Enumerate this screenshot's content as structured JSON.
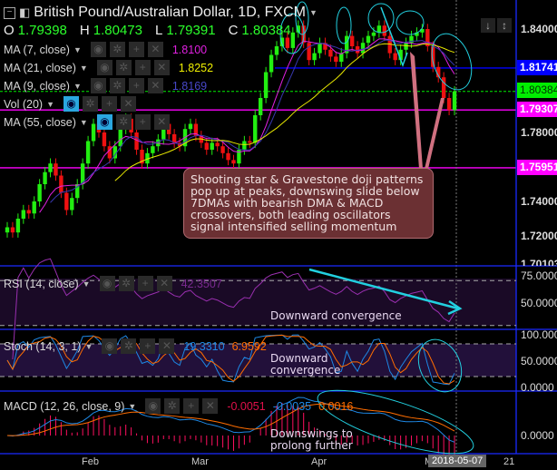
{
  "header": {
    "title": "British Pound/Australian Dollar, 1D, FXCM",
    "ohlc": {
      "o_label": "O",
      "o": "1.79398",
      "h_label": "H",
      "h": "1.80473",
      "l_label": "L",
      "l": "1.79391",
      "c_label": "C",
      "c": "1.80384"
    }
  },
  "legends": [
    {
      "label": "MA (7, close)",
      "value": "1.8100",
      "color": "#e020e0"
    },
    {
      "label": "MA (21, close)",
      "value": "1.8252",
      "color": "#f0f000"
    },
    {
      "label": "MA (9, close)",
      "value": "1.8169",
      "color": "#3838b0"
    },
    {
      "label": "Vol (20)",
      "value": ""
    },
    {
      "label": "MA (55, close)",
      "value": ""
    }
  ],
  "price_axis": {
    "ticks": [
      "1.84000",
      "1.78000",
      "1.74000",
      "1.72000",
      "1.70103"
    ],
    "tags": [
      {
        "text": "1.81741",
        "bg": "#0000ff",
        "fg": "#fff"
      },
      {
        "text": "1.80384",
        "bg": "#00ee00",
        "fg": "#003300"
      },
      {
        "text": "1.79307",
        "bg": "#ff00ff",
        "fg": "#fff"
      },
      {
        "text": "1.75951",
        "bg": "#ff00ff",
        "fg": "#fff"
      }
    ]
  },
  "rsi": {
    "label": "RSI (14, close)",
    "value": "42.3507",
    "ticks": [
      "75.0000",
      "50.0000"
    ],
    "annotation": "Downward convergence"
  },
  "stoch": {
    "label": "Stoch (14, 3, 1)",
    "k": "19.3310",
    "d": "6.9592",
    "ticks": [
      "100.0000",
      "50.0000",
      "0.0000"
    ],
    "annotation_1": "Downward",
    "annotation_2": "convergence"
  },
  "macd": {
    "label": "MACD (12, 26, close, 9)",
    "hist": "-0.0051",
    "macd": "-0.0035",
    "signal": "0.0016",
    "ticks": [
      "0.0000"
    ],
    "annotation_1": "Downswings to",
    "annotation_2": "prolong further"
  },
  "time_axis": {
    "labels": [
      "Feb",
      "Mar",
      "Apr",
      "M",
      "21"
    ],
    "cursor_date": "2018-05-07"
  },
  "note": "Shooting star & Gravestone doji patterns pop up at peaks, downswing slide below 7DMAs with bearish DMA & MACD crossovers, both leading oscillators signal intensified selling momentum",
  "toolbar": {
    "down_icon": "arrow-down-icon",
    "expand_icon": "vertical-expand-icon"
  },
  "chart_data": {
    "type": "candlestick",
    "symbol": "GBP/AUD",
    "interval": "1D",
    "ylim": [
      1.70103,
      1.85
    ],
    "close": [
      1.725,
      1.722,
      1.73,
      1.735,
      1.733,
      1.74,
      1.75,
      1.757,
      1.762,
      1.755,
      1.745,
      1.735,
      1.742,
      1.75,
      1.762,
      1.775,
      1.785,
      1.78,
      1.772,
      1.765,
      1.772,
      1.782,
      1.788,
      1.78,
      1.77,
      1.762,
      1.768,
      1.772,
      1.776,
      1.785,
      1.779,
      1.774,
      1.772,
      1.782,
      1.785,
      1.778,
      1.774,
      1.77,
      1.774,
      1.772,
      1.768,
      1.764,
      1.762,
      1.77,
      1.775,
      1.774,
      1.79,
      1.8,
      1.815,
      1.825,
      1.83,
      1.835,
      1.829,
      1.838,
      1.842,
      1.832,
      1.822,
      1.826,
      1.832,
      1.828,
      1.824,
      1.821,
      1.826,
      1.836,
      1.83,
      1.826,
      1.832,
      1.836,
      1.838,
      1.842,
      1.836,
      1.826,
      1.822,
      1.828,
      1.832,
      1.836,
      1.838,
      1.84,
      1.83,
      1.818,
      1.812,
      1.8,
      1.793,
      1.80384
    ],
    "horizontal_levels": [
      {
        "value": 1.81741,
        "color": "#0000ff"
      },
      {
        "value": 1.79307,
        "color": "#ff00ff"
      },
      {
        "value": 1.75951,
        "color": "#ff00ff"
      },
      {
        "value": 1.80384,
        "color": "#00ee00",
        "style": "dotted"
      }
    ],
    "moving_averages": [
      {
        "period": 7,
        "color": "#e020e0"
      },
      {
        "period": 9,
        "color": "#3838b0"
      },
      {
        "period": 21,
        "color": "#e8e800"
      }
    ],
    "colors": {
      "up": "#22ee11",
      "down": "#ee1111",
      "rsi": "#9a2fb0",
      "stoch_k": "#1e88e5",
      "stoch_d": "#ff6d00",
      "macd": "#1e88e5",
      "signal": "#ff6d00",
      "hist": "#ff1060"
    }
  }
}
